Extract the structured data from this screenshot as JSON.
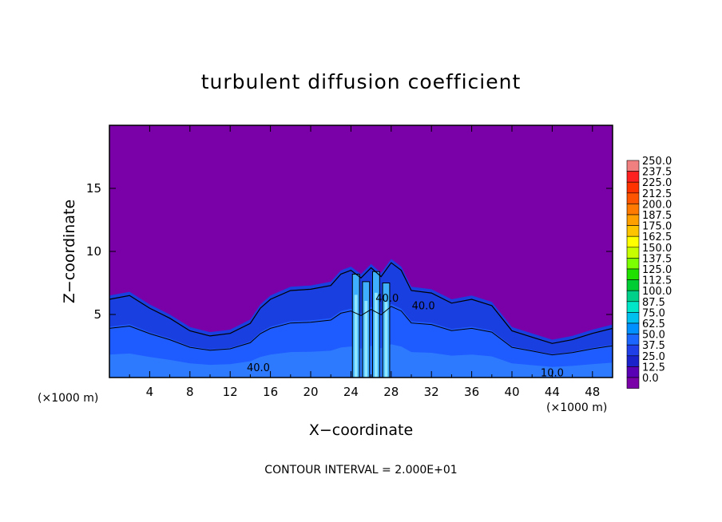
{
  "chart_data": {
    "type": "heatmap",
    "title": "turbulent diffusion coefficient",
    "xlabel": "X−coordinate",
    "ylabel": "Z−coordinate",
    "x_unit": "(×1000 m)",
    "x_unit_right": "(×1000 m)",
    "xlim": [
      0,
      50
    ],
    "ylim": [
      0,
      20
    ],
    "x_ticks": [
      "4",
      "8",
      "12",
      "16",
      "20",
      "24",
      "28",
      "32",
      "36",
      "40",
      "44",
      "48"
    ],
    "x_tick_values": [
      4,
      8,
      12,
      16,
      20,
      24,
      28,
      32,
      36,
      40,
      44,
      48
    ],
    "y_ticks": [
      "5",
      "10",
      "15"
    ],
    "y_tick_values": [
      5,
      10,
      15
    ],
    "colorbar_labels": [
      "250.0",
      "237.5",
      "225.0",
      "212.5",
      "200.0",
      "187.5",
      "175.0",
      "162.5",
      "150.0",
      "137.5",
      "125.0",
      "112.5",
      "100.0",
      "87.5",
      "75.0",
      "62.5",
      "50.0",
      "37.5",
      "25.0",
      "12.5",
      "0.0"
    ],
    "colorbar_colors": [
      "#f08080",
      "#ff2020",
      "#ff3300",
      "#ff5500",
      "#ff7a00",
      "#ff9f00",
      "#ffc400",
      "#ffff00",
      "#c8ff00",
      "#7cff00",
      "#20e000",
      "#00cc33",
      "#00d08a",
      "#00e6c8",
      "#00c0f0",
      "#0090ff",
      "#1a66ff",
      "#1f3fe8",
      "#1a22cc",
      "#5a00b4",
      "#7a00a8"
    ],
    "background_value": "0.0",
    "background_color": "#7a00a8",
    "turbulent_layer": {
      "top_profile_x": [
        0,
        2,
        4,
        6,
        8,
        10,
        12,
        14,
        15,
        16,
        18,
        20,
        22,
        23,
        24,
        25,
        26,
        27,
        28,
        29,
        30,
        32,
        34,
        36,
        38,
        40,
        42,
        44,
        46,
        48,
        50
      ],
      "top_profile_z": [
        6.5,
        6.8,
        5.8,
        5.0,
        4.0,
        3.6,
        3.8,
        4.6,
        5.8,
        6.5,
        7.2,
        7.3,
        7.6,
        8.5,
        8.8,
        8.2,
        9.0,
        8.3,
        9.4,
        8.8,
        7.2,
        7.0,
        6.2,
        6.5,
        6.0,
        4.0,
        3.5,
        3.0,
        3.3,
        3.8,
        4.2
      ],
      "core_columns_x": [
        24.5,
        25.5,
        26.5,
        27.5
      ],
      "core_columns_top_z": [
        8.2,
        7.6,
        8.4,
        7.5
      ]
    },
    "contour_labels": [
      {
        "text": "40.0",
        "x": 14.8,
        "z": 0.5
      },
      {
        "text": "40.0",
        "x": 27.6,
        "z": 6.0
      },
      {
        "text": "40.0",
        "x": 31.2,
        "z": 5.4
      },
      {
        "text": "10.0",
        "x": 44.0,
        "z": 0.1
      }
    ],
    "annotation": "CONTOUR INTERVAL = 2.000E+01"
  }
}
